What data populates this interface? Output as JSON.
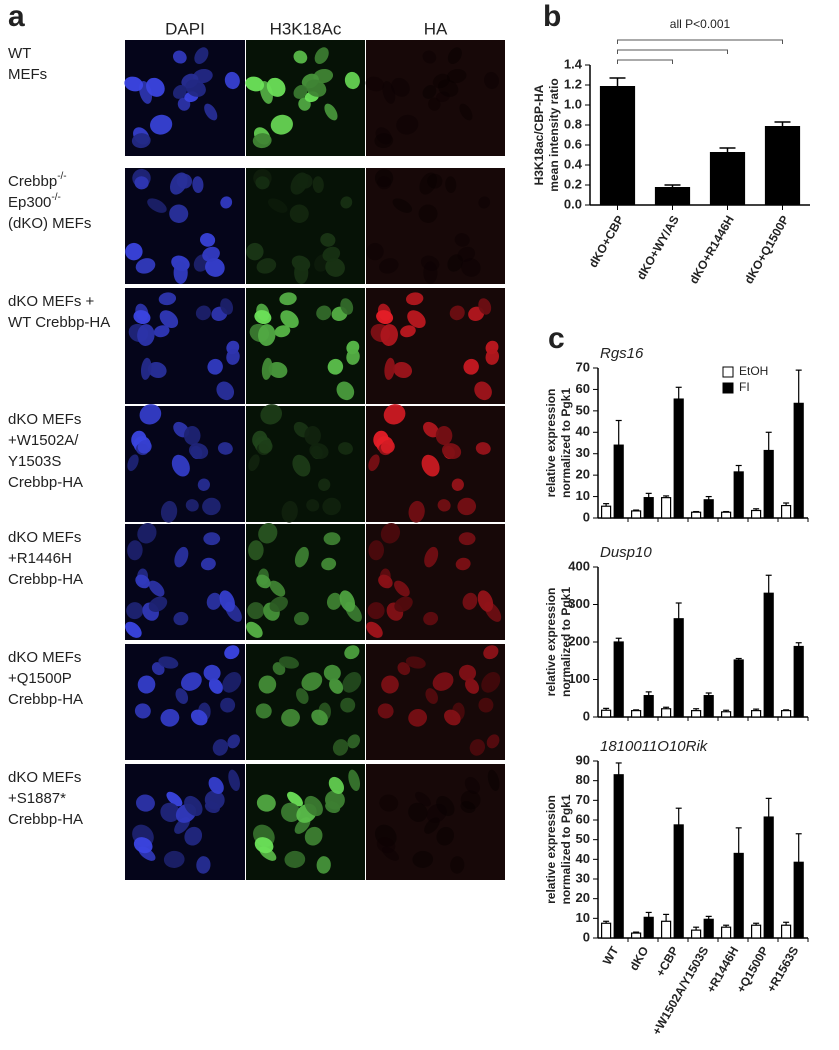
{
  "panel_labels": [
    "a",
    "b",
    "c"
  ],
  "panel_a": {
    "columns": [
      "DAPI",
      "H3K18Ac",
      "HA"
    ],
    "rows": [
      {
        "lines": [
          "WT",
          "MEFs"
        ]
      },
      {
        "lines": [
          [
            "Crebbp",
            "-/-"
          ],
          [
            "Ep300",
            "-/-"
          ],
          "(dKO) MEFs"
        ]
      },
      {
        "lines": [
          "dKO MEFs +",
          "WT Crebbp-HA"
        ]
      },
      {
        "lines": [
          "dKO MEFs",
          "+W1502A/",
          "Y1503S",
          "Crebbp-HA"
        ]
      },
      {
        "lines": [
          "dKO MEFs",
          "+R1446H",
          "Crebbp-HA"
        ]
      },
      {
        "lines": [
          "dKO MEFs",
          "+Q1500P",
          "Crebbp-HA"
        ]
      },
      {
        "lines": [
          "dKO MEFs",
          "+S1887*",
          "Crebbp-HA"
        ]
      }
    ]
  },
  "chart_data": [
    {
      "type": "bar",
      "annotation": "all P<0.001",
      "ylabel": [
        "H3K18ac/CBP-HA",
        "mean intensity ratio"
      ],
      "categories": [
        "dKO+CBP",
        "dKO+WY/AS",
        "dKO+R1446H",
        "dKO+Q1500P"
      ],
      "values": [
        1.19,
        0.18,
        0.53,
        0.79
      ],
      "errors": [
        0.08,
        0.02,
        0.04,
        0.04
      ],
      "color": "#000000",
      "ylim": [
        0,
        1.4
      ],
      "yticks": [
        {
          "value": 0,
          "label": "0.0"
        },
        0.2,
        0.4,
        0.6,
        0.8,
        {
          "value": 1,
          "label": "1.0"
        },
        1.2,
        1.4
      ]
    },
    {
      "type": "grouped_bar",
      "title": "Rgs16",
      "ylabel": [
        "relative expression",
        "normalized to Pgk1"
      ],
      "series": [
        {
          "name": "EtOH",
          "color": "#ffffff",
          "values": [
            5.5,
            3.3,
            9.5,
            2.7,
            2.7,
            3.5,
            5.8
          ],
          "errors": [
            1.2,
            0.4,
            0.8,
            0.3,
            0.3,
            0.8,
            1.2
          ]
        },
        {
          "name": "FI",
          "color": "#000000",
          "values": [
            34,
            9.5,
            55.5,
            8.5,
            21.5,
            31.5,
            53.5
          ],
          "errors": [
            11.5,
            2,
            5.5,
            1.5,
            3,
            8.5,
            15.5
          ]
        }
      ],
      "ylim": [
        0,
        70
      ],
      "yticks": [
        0,
        10,
        20,
        30,
        40,
        50,
        60,
        70
      ],
      "legend": "top-right"
    },
    {
      "type": "grouped_bar",
      "title": "Dusp10",
      "ylabel": [
        "relative expression",
        "normalized to Pgk1"
      ],
      "series": [
        {
          "color": "#ffffff",
          "values": [
            18,
            17,
            22,
            17,
            14,
            17,
            17
          ],
          "errors": [
            5,
            2,
            4,
            5,
            4,
            4,
            2
          ]
        },
        {
          "color": "#000000",
          "values": [
            200,
            57,
            262,
            57,
            152,
            330,
            188
          ],
          "errors": [
            10,
            10,
            42,
            7,
            4,
            48,
            10
          ]
        }
      ],
      "ylim": [
        0,
        400
      ],
      "yticks": [
        0,
        100,
        200,
        300,
        400
      ]
    },
    {
      "type": "grouped_bar",
      "title": "1810011O10Rik",
      "ylabel": [
        "relative expression",
        "normalized to Pgk1"
      ],
      "categories": [
        "WT",
        "dKO",
        "+CBP",
        "+W1502A/Y1503S",
        "+R1446H",
        "+Q1500P",
        "+R1563S"
      ],
      "series": [
        {
          "color": "#ffffff",
          "values": [
            7.5,
            2.5,
            8.5,
            4,
            5.5,
            6.5,
            6.5
          ],
          "errors": [
            1,
            0.5,
            3.5,
            1.5,
            1,
            1,
            1.5
          ]
        },
        {
          "color": "#000000",
          "values": [
            83,
            10.5,
            57.5,
            9.5,
            43,
            61.5,
            38.5
          ],
          "errors": [
            6,
            2.5,
            8.5,
            1.5,
            13,
            9.5,
            14.5
          ]
        }
      ],
      "ylim": [
        0,
        90
      ],
      "yticks": [
        0,
        10,
        20,
        30,
        40,
        50,
        60,
        70,
        80,
        90
      ]
    }
  ]
}
